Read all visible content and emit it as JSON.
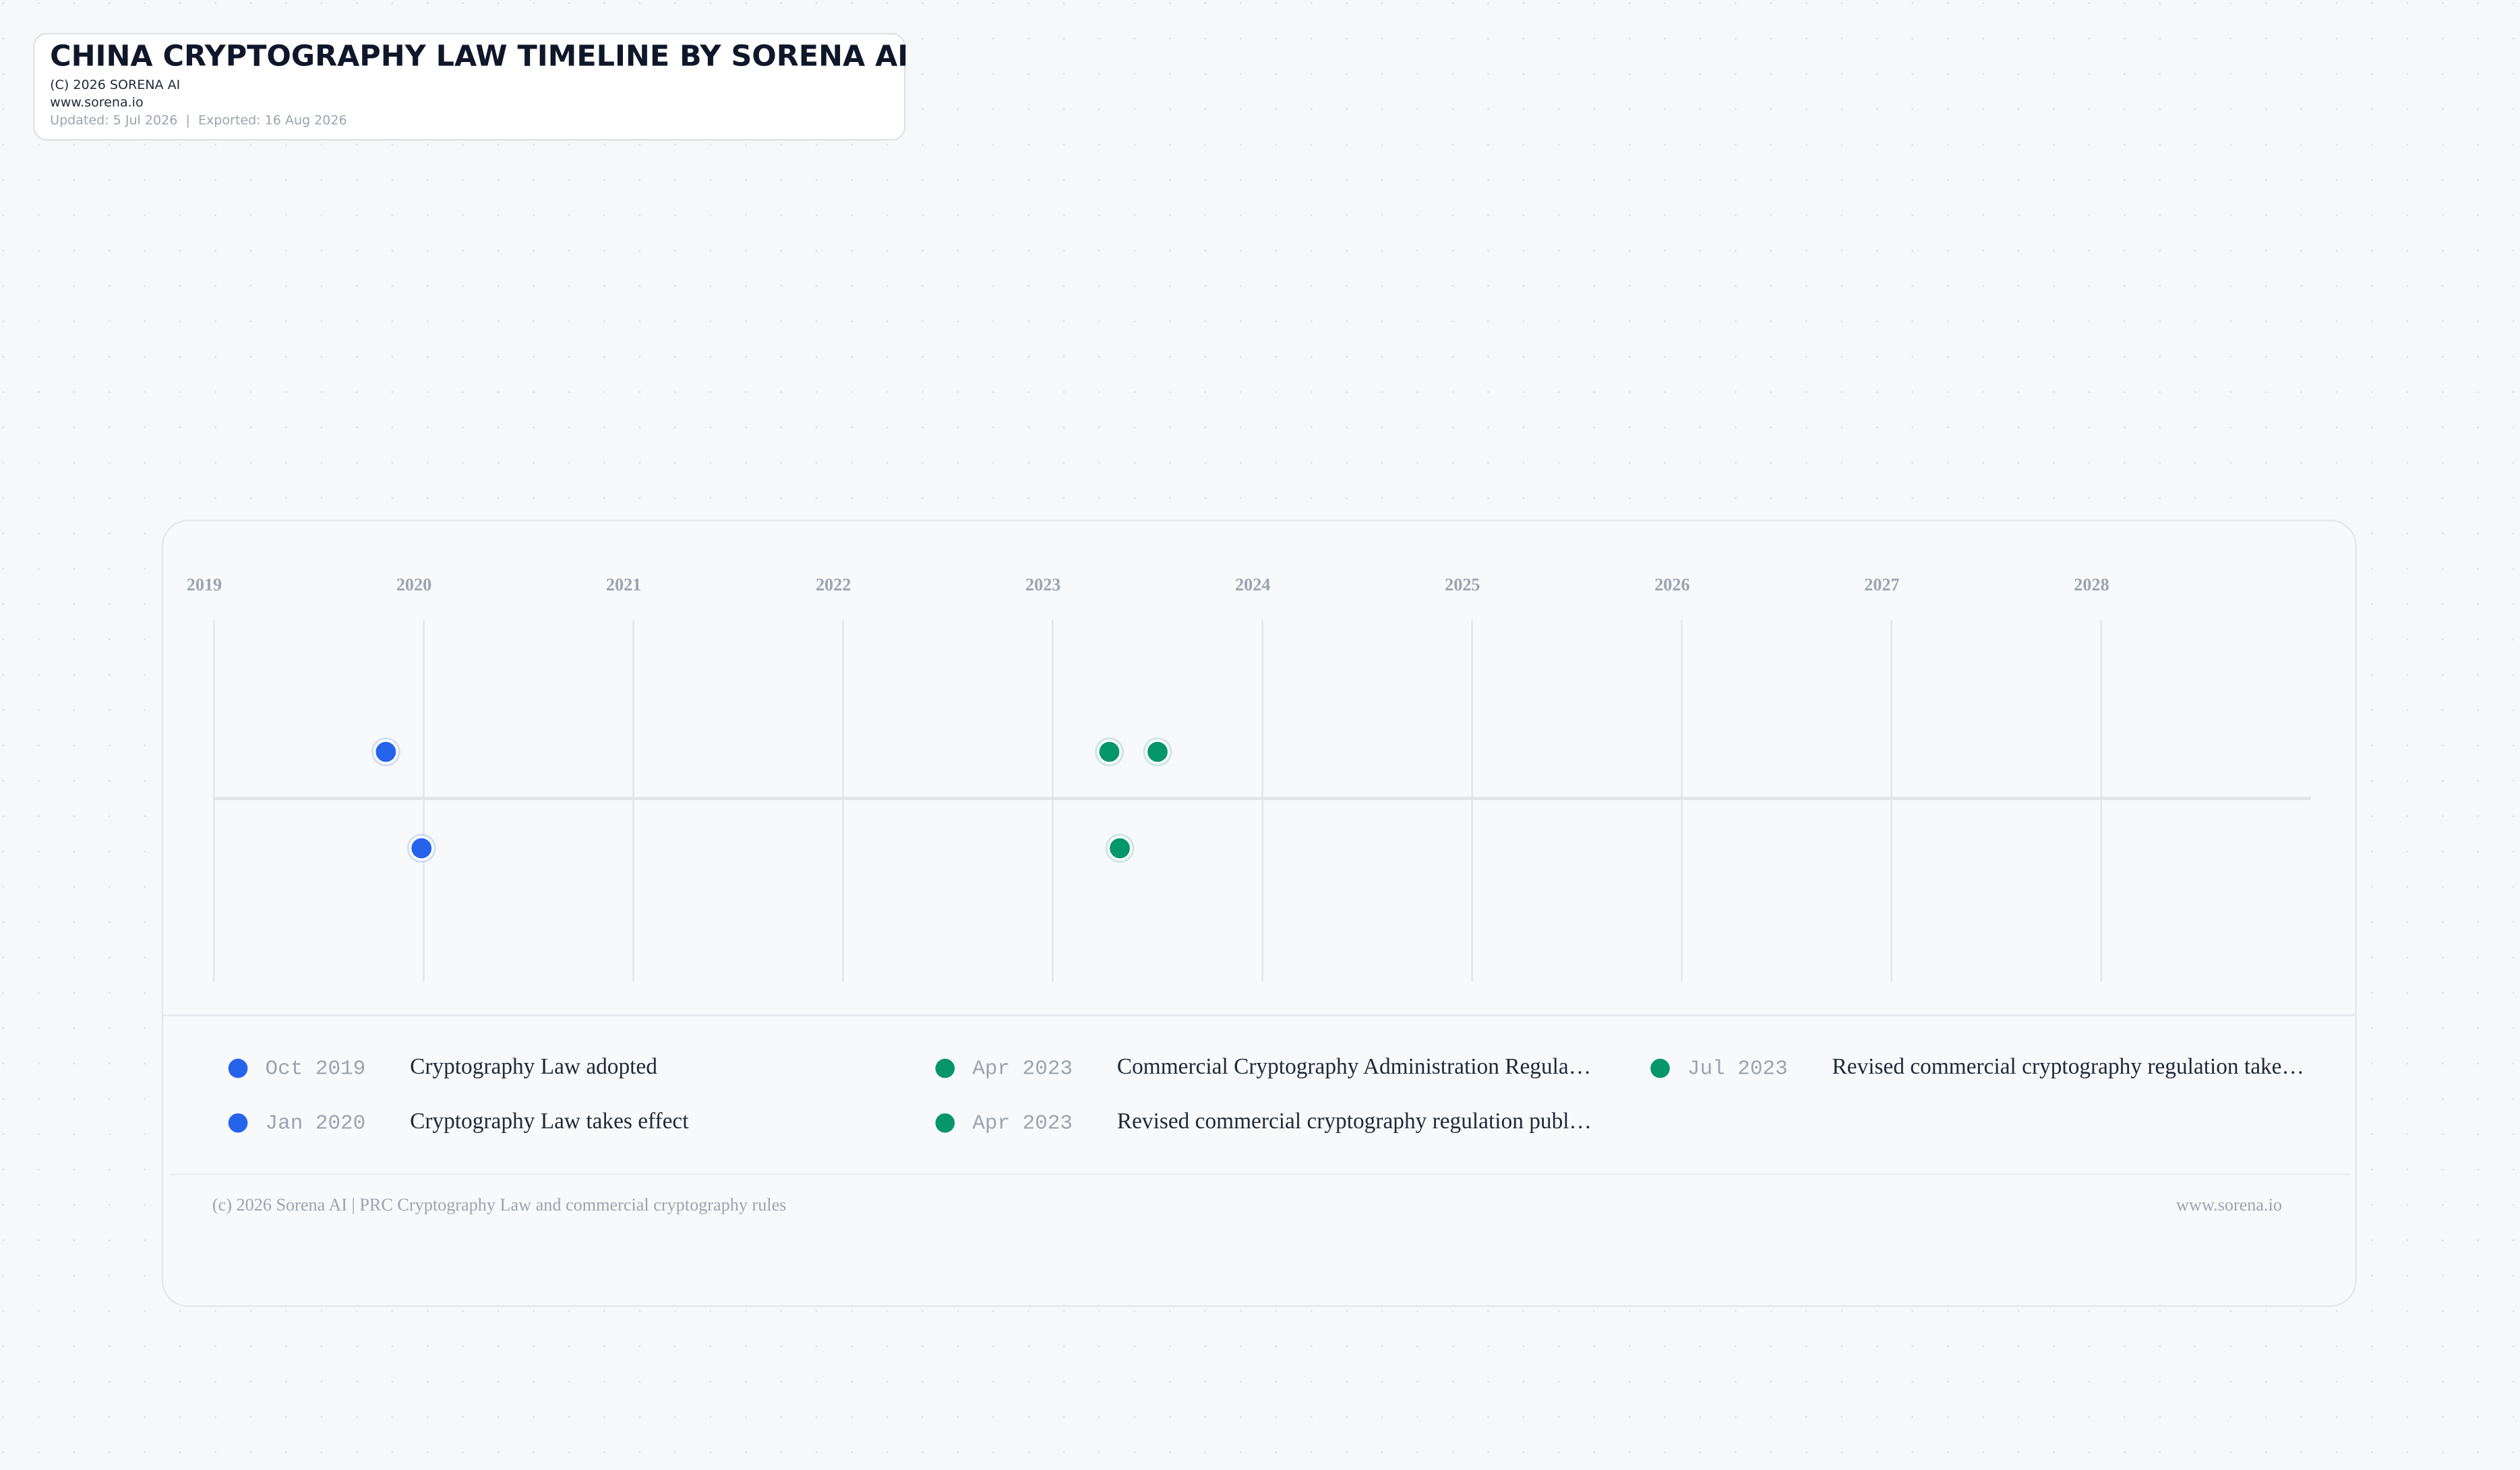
{
  "header": {
    "title": "CHINA CRYPTOGRAPHY LAW TIMELINE BY SORENA AI",
    "copyright": "(C) 2026 SORENA AI",
    "website": "www.sorena.io",
    "dates": "Updated: 5 Jul 2026  |  Exported: 16 Aug 2026"
  },
  "chart_data": {
    "type": "timeline",
    "xlim": [
      2019,
      2029
    ],
    "xticks": [
      2019,
      2020,
      2021,
      2022,
      2023,
      2024,
      2025,
      2026,
      2027,
      2028
    ],
    "grid": true,
    "events": [
      {
        "date": "Oct 2019",
        "x": 2019.82,
        "label": "Cryptography Law adopted",
        "color": "#2563eb"
      },
      {
        "date": "Jan 2020",
        "x": 2019.99,
        "label": "Cryptography Law takes effect",
        "color": "#2563eb"
      },
      {
        "date": "Apr 2023",
        "x": 2023.27,
        "label": "Commercial Cryptography Administration Regula…",
        "color": "#059669"
      },
      {
        "date": "Apr 2023",
        "x": 2023.32,
        "label": "Revised commercial cryptography regulation publ…",
        "color": "#059669"
      },
      {
        "date": "Jul 2023",
        "x": 2023.5,
        "label": "Revised commercial cryptography regulation take…",
        "color": "#059669"
      }
    ]
  },
  "footer": {
    "left": "(c) 2026 Sorena AI | PRC Cryptography Law and commercial cryptography rules",
    "right": "www.sorena.io"
  }
}
